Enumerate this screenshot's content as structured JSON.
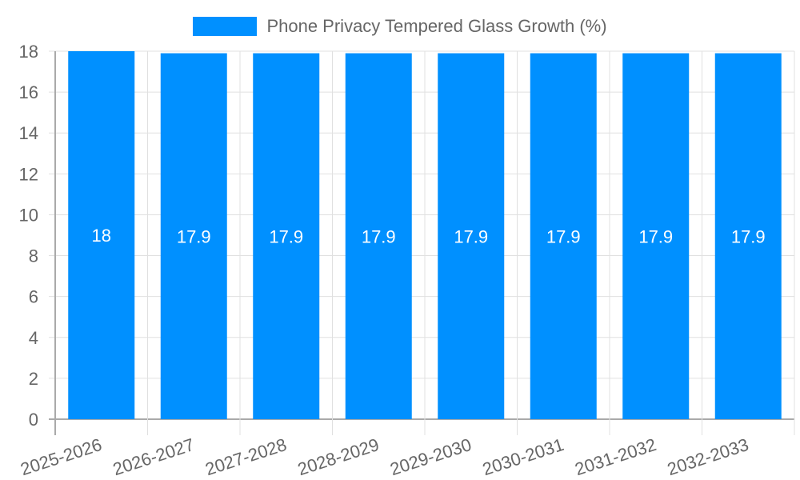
{
  "legend": {
    "label": "Phone Privacy Tempered Glass Growth (%)",
    "color": "#0090FF"
  },
  "chart_data": {
    "type": "bar",
    "title": "",
    "categories": [
      "2025-2026",
      "2026-2027",
      "2027-2028",
      "2028-2029",
      "2029-2030",
      "2030-2031",
      "2031-2032",
      "2032-2033"
    ],
    "series": [
      {
        "name": "Phone Privacy Tempered Glass Growth (%)",
        "values": [
          18,
          17.9,
          17.9,
          17.9,
          17.9,
          17.9,
          17.9,
          17.9
        ]
      }
    ],
    "data_labels": [
      "18",
      "17.9",
      "17.9",
      "17.9",
      "17.9",
      "17.9",
      "17.9",
      "17.9"
    ],
    "xlabel": "",
    "ylabel": "",
    "ylim": [
      0,
      18
    ],
    "yticks": [
      0,
      2,
      4,
      6,
      8,
      10,
      12,
      14,
      16,
      18
    ],
    "grid": true,
    "legend_position": "top"
  }
}
